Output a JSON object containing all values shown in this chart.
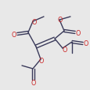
{
  "bg_color": "#e8e8e8",
  "line_color": "#3a3a5a",
  "line_width": 1.0,
  "o_color": "#cc2222",
  "figsize": [
    1.16,
    1.15
  ],
  "dpi": 100,
  "xlim": [
    0,
    116
  ],
  "ylim": [
    0,
    115
  ]
}
